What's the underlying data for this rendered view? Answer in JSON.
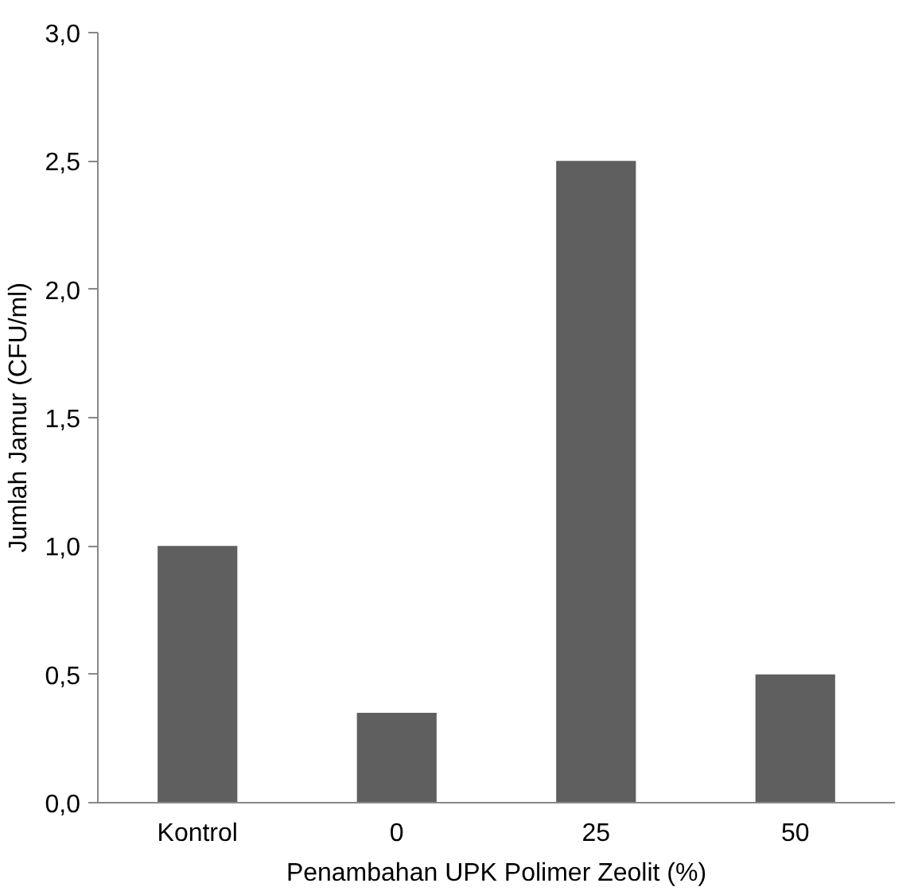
{
  "chart_data": {
    "type": "bar",
    "xlabel": "Penambahan UPK Polimer Zeolit (%)",
    "ylabel": "Jumlah Jamur (CFU/ml)",
    "categories": [
      "Kontrol",
      "0",
      "25",
      "50"
    ],
    "values": [
      1.0,
      0.35,
      2.5,
      0.5
    ],
    "color": "#5f5f5f",
    "ylim": [
      0,
      3.0
    ],
    "yticks": [
      {
        "value": 0,
        "label": "0,0"
      },
      {
        "value": 0.5,
        "label": "0,5"
      },
      {
        "value": 1.0,
        "label": "1,0"
      },
      {
        "value": 1.5,
        "label": "1,5"
      },
      {
        "value": 2.0,
        "label": "2,0"
      },
      {
        "value": 2.5,
        "label": "2,5"
      },
      {
        "value": 3.0,
        "label": "3,0"
      }
    ],
    "grid": false
  }
}
